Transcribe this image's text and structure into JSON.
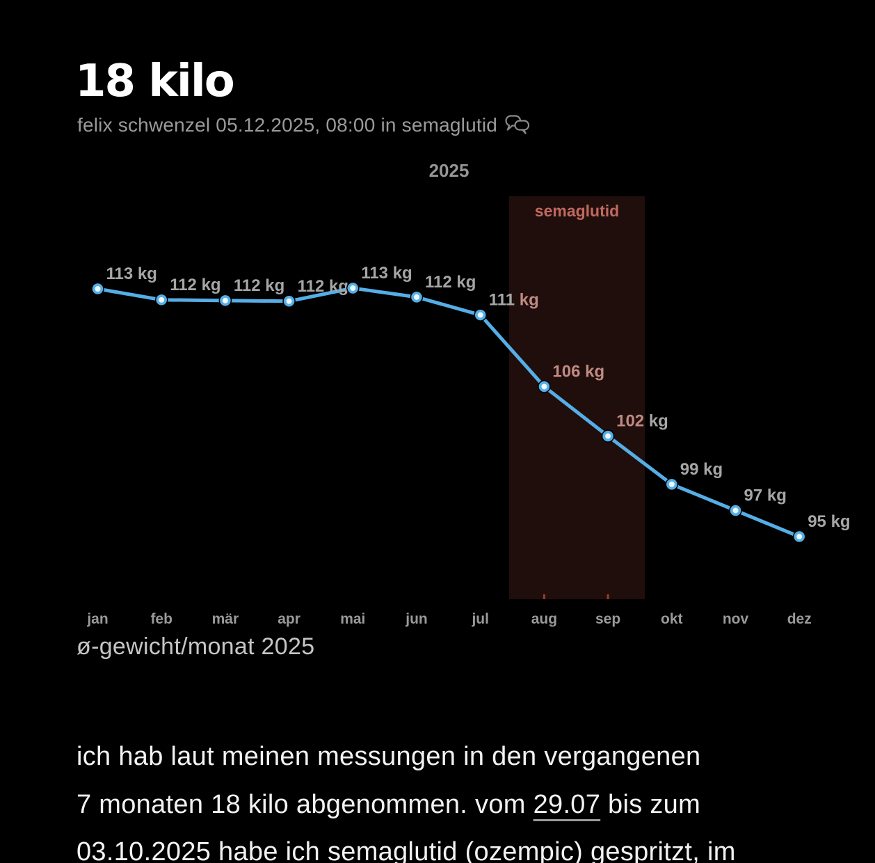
{
  "header": {
    "title": "18 kilo",
    "byline": {
      "author": "felix schwenzel",
      "datetime": "05.12.2025, 08:00",
      "in_label": "in",
      "category": "semaglutid"
    }
  },
  "chart_data": {
    "type": "line",
    "title": "2025",
    "caption": "ø-gewicht/monat 2025",
    "categories": [
      "jan",
      "feb",
      "mär",
      "apr",
      "mai",
      "jun",
      "jul",
      "aug",
      "sep",
      "okt",
      "nov",
      "dez"
    ],
    "series": [
      {
        "name": "ø-gewicht/monat",
        "unit": "kg",
        "values": [
          113.0,
          112.2,
          112.15,
          112.1,
          113.05,
          112.4,
          111.1,
          105.9,
          102.3,
          98.8,
          96.9,
          95.0
        ],
        "labels": [
          "113 kg",
          "112 kg",
          "112 kg",
          "112 kg",
          "113 kg",
          "112 kg",
          "111 kg",
          "106 kg",
          "102 kg",
          "99 kg",
          "97 kg",
          "95 kg"
        ]
      }
    ],
    "point_label_styles": [
      {
        "v": "gray",
        "u": "gray"
      },
      {
        "v": "gray",
        "u": "gray"
      },
      {
        "v": "gray",
        "u": "gray"
      },
      {
        "v": "gray",
        "u": "gray"
      },
      {
        "v": "gray",
        "u": "gray"
      },
      {
        "v": "gray",
        "u": "gray"
      },
      {
        "v": "gray",
        "u": "pink"
      },
      {
        "v": "pink",
        "u": "pink"
      },
      {
        "v": "pink",
        "u": "gray"
      },
      {
        "v": "gray",
        "u": "gray"
      },
      {
        "v": "gray",
        "u": "gray"
      },
      {
        "v": "gray",
        "u": "gray"
      }
    ],
    "region": {
      "label": "semaglutid",
      "from": "29.07",
      "to": "03.10",
      "fill": "#200e0c",
      "label_color": "#c0695f",
      "tick_color": "#9c3a2c",
      "tick_months": [
        7,
        8
      ]
    },
    "colors": {
      "line": "#55aee6",
      "marker_center": "#eef9ff",
      "label_gray": "#a6a6a6",
      "label_pink": "#c08a83",
      "axis_label": "#9a9a9a",
      "title": "#969696"
    },
    "grid": false,
    "legend": "none",
    "ylim": [
      94,
      114
    ]
  },
  "body": {
    "lines": [
      [
        {
          "text": "ich hab laut meinen messungen in den vergangenen"
        }
      ],
      [
        {
          "text": "7 monaten 18 kilo abgenommen. vom "
        },
        {
          "text": "29.07",
          "link": true
        },
        {
          "text": " bis zum"
        }
      ],
      [
        {
          "text": "03.10.2025 habe ich semaglutid (ozempic) gespritzt, im"
        }
      ]
    ]
  }
}
